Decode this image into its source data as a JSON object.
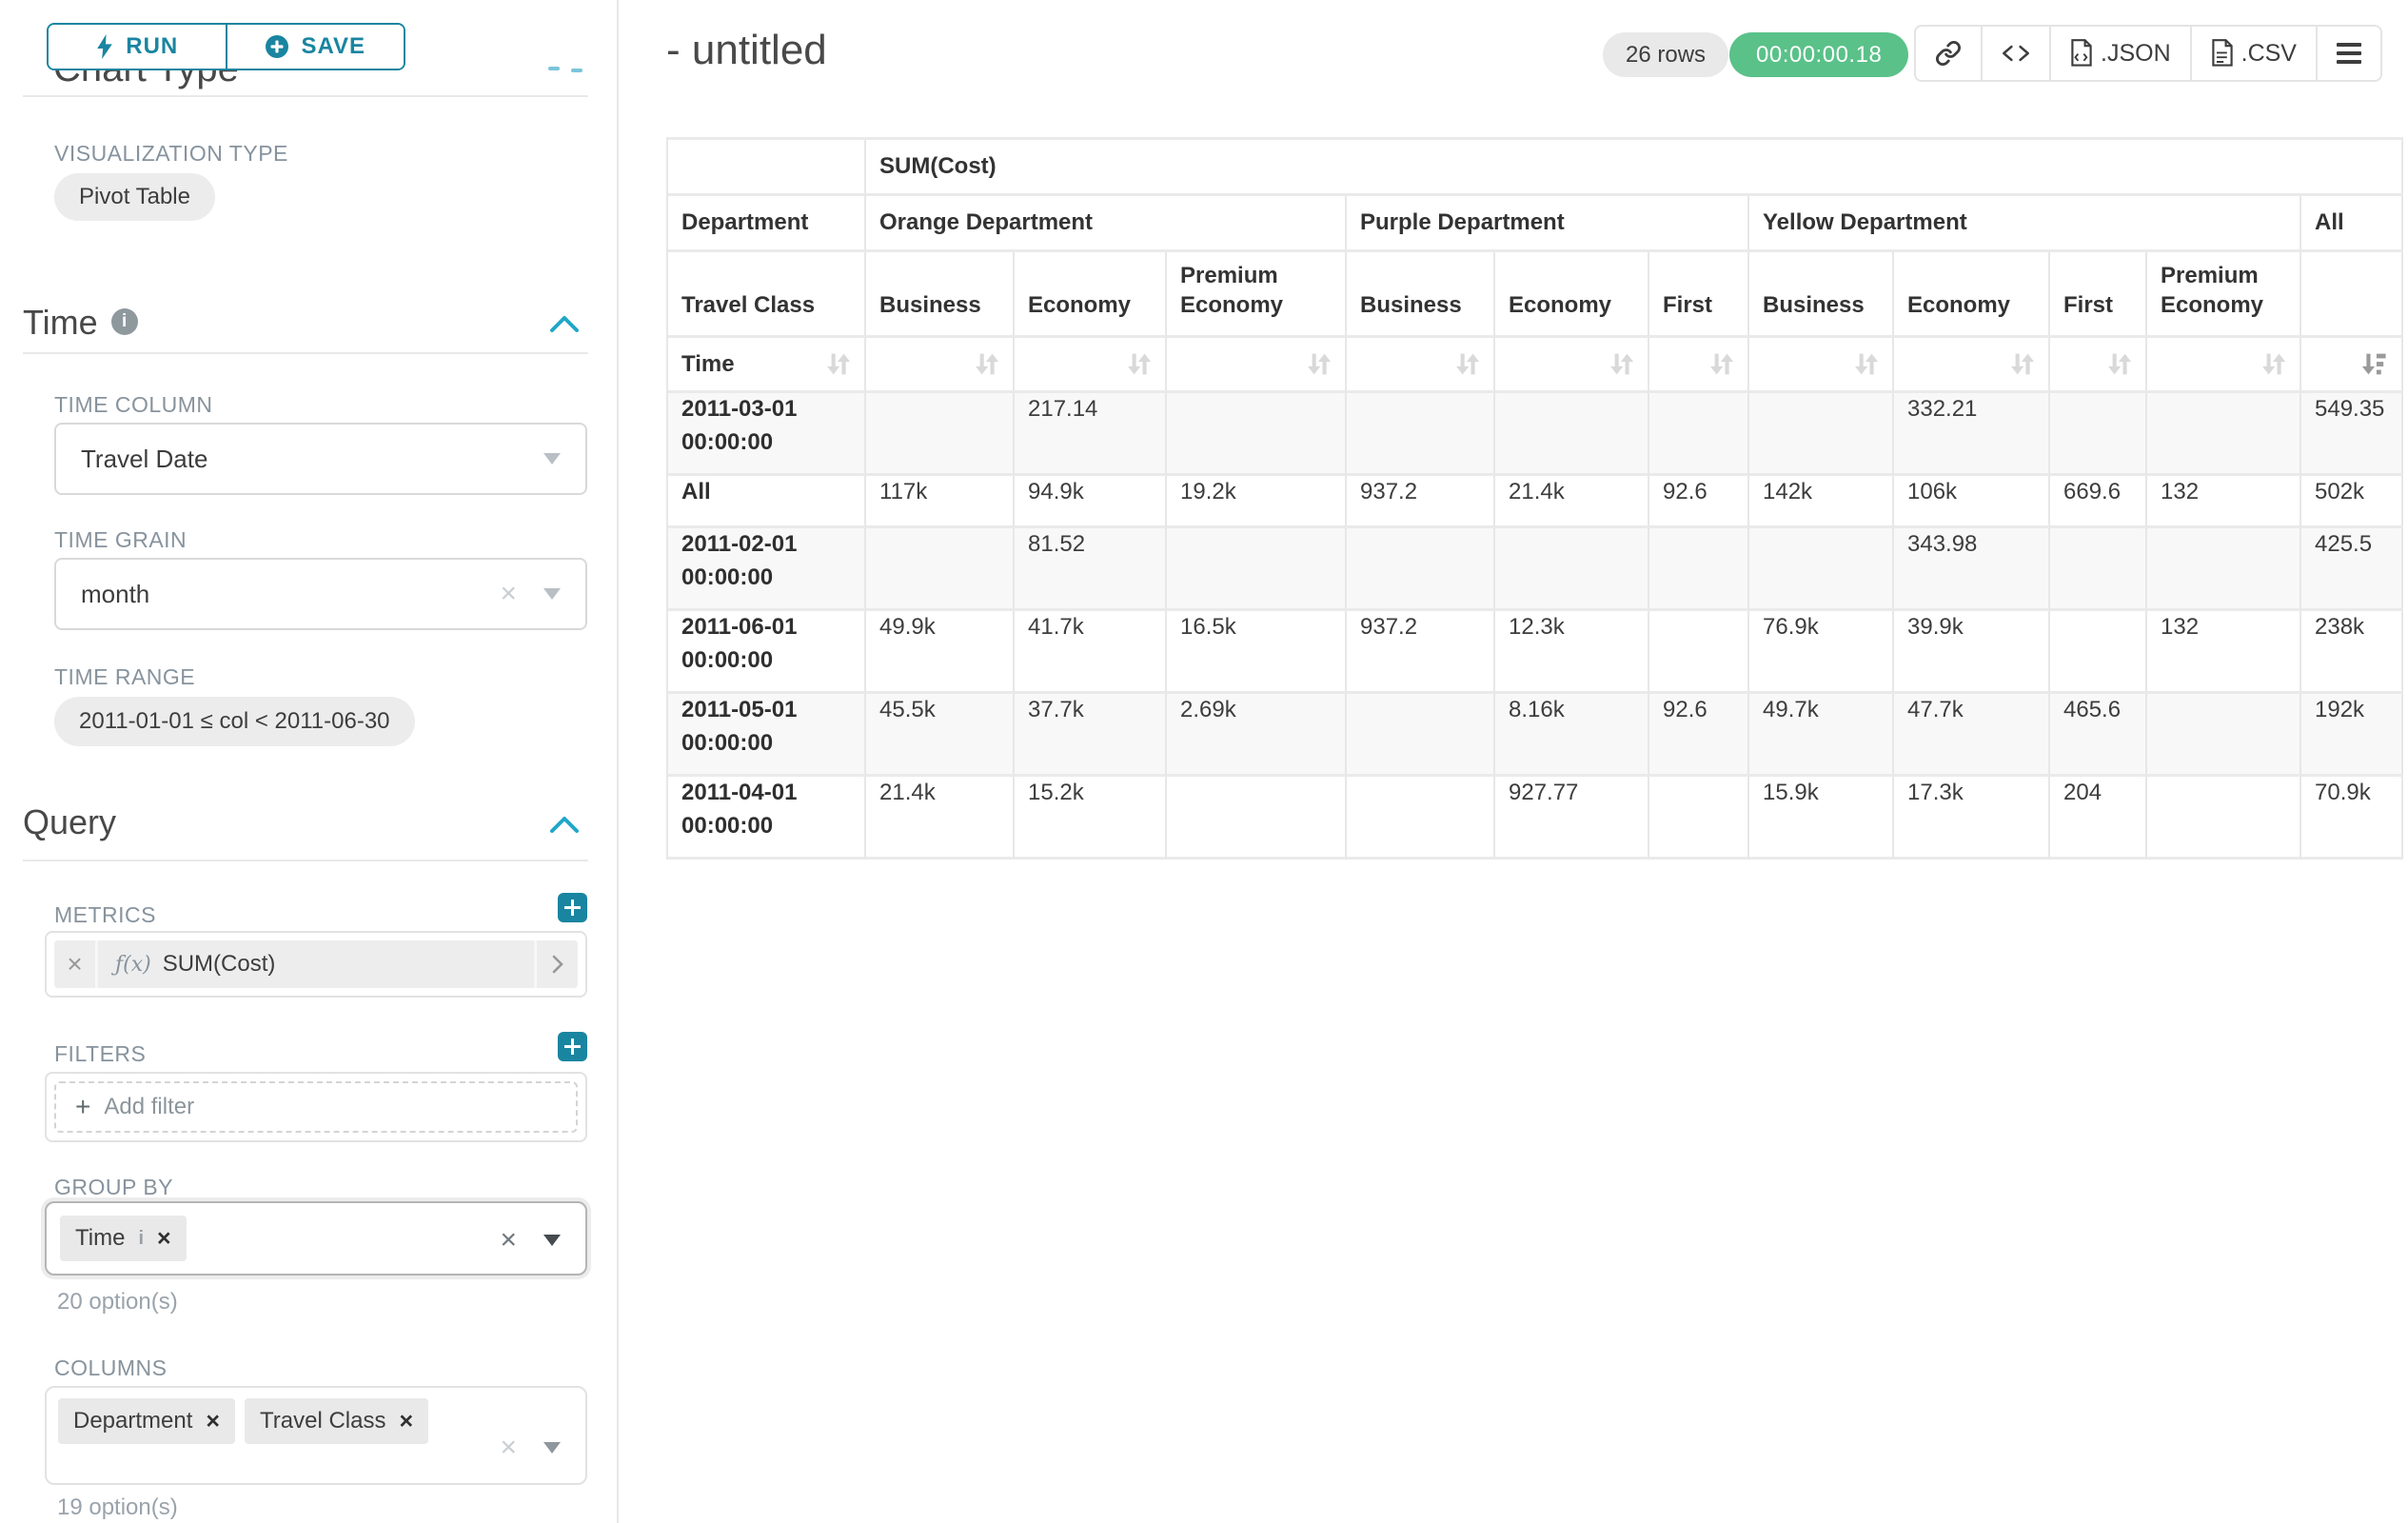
{
  "toolbar": {
    "run": "RUN",
    "save": "SAVE"
  },
  "left_panel": {
    "chart_type_section_title": "Chart Type",
    "viz_label": "VISUALIZATION TYPE",
    "viz_value": "Pivot Table",
    "time_section": {
      "title": "Time",
      "time_column_label": "TIME COLUMN",
      "time_column_value": "Travel Date",
      "time_grain_label": "TIME GRAIN",
      "time_grain_value": "month",
      "time_range_label": "TIME RANGE",
      "time_range_value": "2011-01-01 ≤ col < 2011-06-30"
    },
    "query_section": {
      "title": "Query",
      "metrics_label": "METRICS",
      "metric": {
        "fx": "ƒ(x)",
        "name": "SUM(Cost)"
      },
      "filters_label": "FILTERS",
      "add_filter_label": "Add filter",
      "group_by_label": "GROUP BY",
      "group_by_tags": [
        {
          "label": "Time",
          "has_info": true
        }
      ],
      "group_by_hint": "20 option(s)",
      "columns_label": "COLUMNS",
      "columns_tags": [
        {
          "label": "Department",
          "has_info": false
        },
        {
          "label": "Travel Class",
          "has_info": false
        }
      ],
      "columns_hint": "19 option(s)"
    }
  },
  "results_header": {
    "title": "- untitled",
    "row_count_badge": "26 rows",
    "timer": "00:00:00.18",
    "export_json_label": ".JSON",
    "export_csv_label": ".CSV",
    "icons": [
      "link-icon",
      "code-icon",
      "json-file-icon",
      "csv-file-icon",
      "menu-icon"
    ]
  },
  "pivot_table": {
    "metric_header": "SUM(Cost)",
    "corner_labels": {
      "department": "Department",
      "travel_class": "Travel Class",
      "time": "Time"
    },
    "column_groups": [
      {
        "label": "Orange Department",
        "columns": [
          "Business",
          "Economy",
          "Premium Economy"
        ]
      },
      {
        "label": "Purple Department",
        "columns": [
          "Business",
          "Economy",
          "First"
        ]
      },
      {
        "label": "Yellow Department",
        "columns": [
          "Business",
          "Economy",
          "First",
          "Premium Economy"
        ]
      },
      {
        "label": "All",
        "columns": [
          ""
        ]
      }
    ],
    "sorted_column": "All",
    "sort_direction": "descending",
    "rows": [
      {
        "label": "2011-03-01 00:00:00",
        "values": [
          "",
          "217.14",
          "",
          "",
          "",
          "",
          "",
          "332.21",
          "",
          "",
          "549.35"
        ]
      },
      {
        "label": "All",
        "values": [
          "117k",
          "94.9k",
          "19.2k",
          "937.2",
          "21.4k",
          "92.6",
          "142k",
          "106k",
          "669.6",
          "132",
          "502k"
        ]
      },
      {
        "label": "2011-02-01 00:00:00",
        "values": [
          "",
          "81.52",
          "",
          "",
          "",
          "",
          "",
          "343.98",
          "",
          "",
          "425.5"
        ]
      },
      {
        "label": "2011-06-01 00:00:00",
        "values": [
          "49.9k",
          "41.7k",
          "16.5k",
          "937.2",
          "12.3k",
          "",
          "76.9k",
          "39.9k",
          "",
          "132",
          "238k"
        ]
      },
      {
        "label": "2011-05-01 00:00:00",
        "values": [
          "45.5k",
          "37.7k",
          "2.69k",
          "",
          "8.16k",
          "92.6",
          "49.7k",
          "47.7k",
          "465.6",
          "",
          "192k"
        ]
      },
      {
        "label": "2011-04-01 00:00:00",
        "values": [
          "21.4k",
          "15.2k",
          "",
          "",
          "927.77",
          "",
          "15.9k",
          "17.3k",
          "204",
          "",
          "70.9k"
        ]
      }
    ]
  }
}
